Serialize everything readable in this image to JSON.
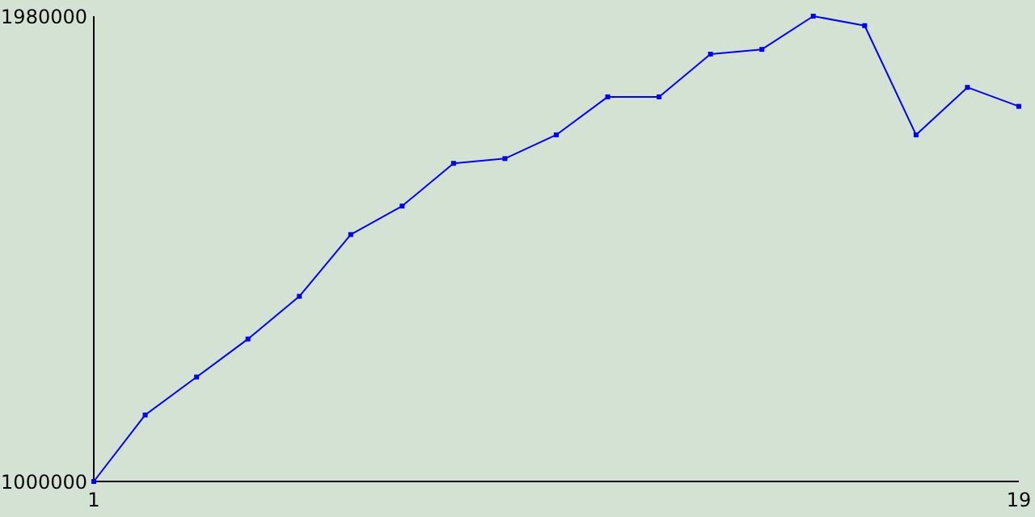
{
  "chart_data": {
    "type": "line",
    "x": [
      1,
      2,
      3,
      4,
      5,
      6,
      7,
      8,
      9,
      10,
      11,
      12,
      13,
      14,
      15,
      16,
      17,
      18,
      19
    ],
    "series": [
      {
        "color": "#0000ff",
        "values": [
          1000000,
          1140000,
          1220000,
          1300000,
          1390000,
          1520000,
          1580000,
          1670000,
          1680000,
          1730000,
          1810000,
          1810000,
          1900000,
          1910000,
          1980000,
          1960000,
          1730000,
          1830000,
          1790000
        ]
      }
    ],
    "xlim": [
      1,
      19
    ],
    "xticks": [
      1,
      19
    ],
    "ylim": [
      1000000,
      1980000
    ],
    "yticks": [
      1000000,
      1980000
    ],
    "grid": false,
    "marker": "square",
    "line_style": "solid"
  }
}
